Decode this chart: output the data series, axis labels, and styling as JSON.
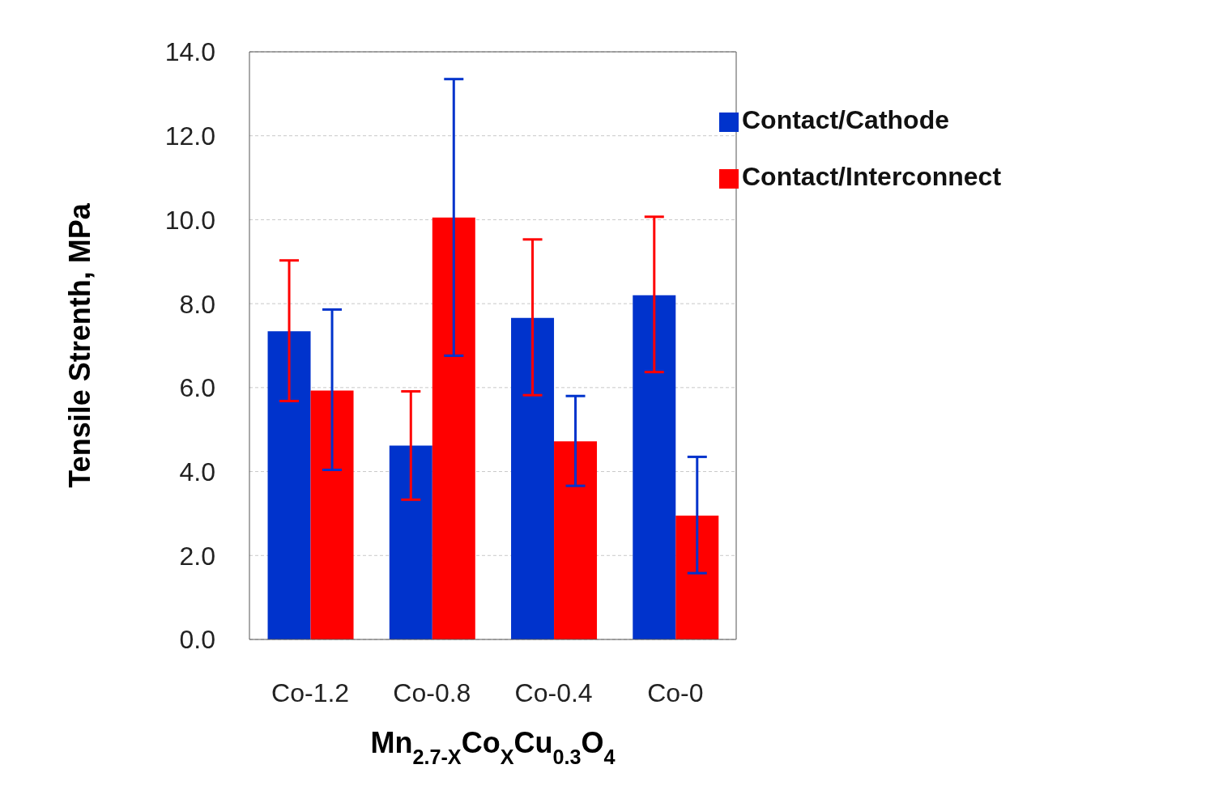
{
  "chart_data": {
    "type": "bar",
    "xlabel": "Mn$_{2.7-X}$Co$_{X}$Cu$_{0.3}$O$_{4}$",
    "ylabel": "Tensile Strenth, MPa",
    "categories": [
      "Co-1.2",
      "Co-0.8",
      "Co-0.4",
      "Co-0"
    ],
    "series": [
      {
        "name": "Contact/Cathode",
        "color": "#0033cc",
        "values": [
          7.34,
          4.62,
          7.66,
          8.2
        ],
        "errors": [
          [
            5.68,
            9.03
          ],
          [
            3.33,
            5.91
          ],
          [
            5.82,
            9.53
          ],
          [
            6.37,
            10.07
          ]
        ]
      },
      {
        "name": "Contact/Interconnect",
        "color": "#ff0000",
        "values": [
          5.93,
          10.05,
          4.72,
          2.95
        ],
        "errors": [
          [
            4.04,
            7.86
          ],
          [
            6.76,
            13.35
          ],
          [
            3.66,
            5.8
          ],
          [
            1.58,
            4.35
          ]
        ]
      }
    ],
    "ylim": [
      0,
      14
    ],
    "yticks": [
      {
        "value": 0,
        "label": "0.0"
      },
      {
        "value": 2,
        "label": "2.0"
      },
      {
        "value": 4,
        "label": "4.0"
      },
      {
        "value": 6,
        "label": "6.0"
      },
      {
        "value": 8,
        "label": "8.0"
      },
      {
        "value": 10,
        "label": "10.0"
      },
      {
        "value": 12,
        "label": "12.0"
      },
      {
        "value": 14,
        "label": "14.0"
      }
    ],
    "grid": "y",
    "legend": "top right"
  }
}
